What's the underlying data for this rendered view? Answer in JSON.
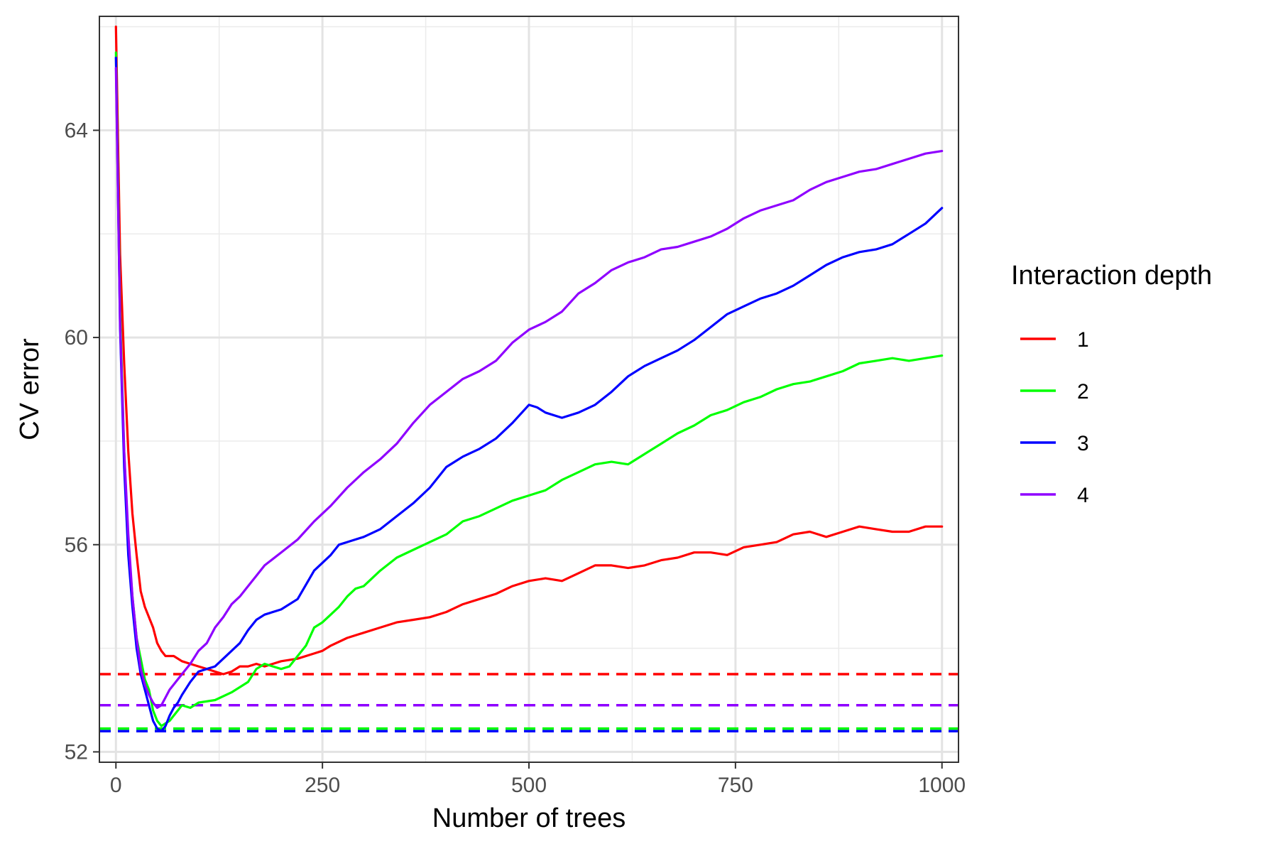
{
  "chart_data": {
    "type": "line",
    "title": "",
    "xlabel": "Number of trees",
    "ylabel": "CV error",
    "xlim": [
      -20,
      1020
    ],
    "ylim": [
      51.8,
      66.2
    ],
    "x_ticks": [
      0,
      250,
      500,
      750,
      1000
    ],
    "x_tick_labels": [
      "0",
      "250",
      "500",
      "750",
      "1000"
    ],
    "y_ticks": [
      52,
      56,
      60,
      64
    ],
    "y_tick_labels": [
      "52",
      "56",
      "60",
      "64"
    ],
    "grid": true,
    "legend": {
      "title": "Interaction depth",
      "position": "right",
      "entries": [
        "1",
        "2",
        "3",
        "4"
      ]
    },
    "series": [
      {
        "name": "1",
        "color": "#ff0000",
        "min_line": 53.5,
        "points": [
          [
            0,
            66
          ],
          [
            5,
            61.6
          ],
          [
            10,
            59.5
          ],
          [
            15,
            57.8
          ],
          [
            20,
            56.6
          ],
          [
            25,
            55.8
          ],
          [
            30,
            55.1
          ],
          [
            35,
            54.8
          ],
          [
            40,
            54.6
          ],
          [
            45,
            54.4
          ],
          [
            50,
            54.1
          ],
          [
            55,
            53.95
          ],
          [
            60,
            53.85
          ],
          [
            70,
            53.85
          ],
          [
            80,
            53.75
          ],
          [
            90,
            53.7
          ],
          [
            100,
            53.65
          ],
          [
            110,
            53.6
          ],
          [
            120,
            53.55
          ],
          [
            130,
            53.5
          ],
          [
            140,
            53.55
          ],
          [
            150,
            53.65
          ],
          [
            160,
            53.65
          ],
          [
            170,
            53.7
          ],
          [
            180,
            53.65
          ],
          [
            200,
            53.75
          ],
          [
            220,
            53.8
          ],
          [
            240,
            53.9
          ],
          [
            250,
            53.95
          ],
          [
            260,
            54.05
          ],
          [
            280,
            54.2
          ],
          [
            300,
            54.3
          ],
          [
            320,
            54.4
          ],
          [
            340,
            54.5
          ],
          [
            360,
            54.55
          ],
          [
            380,
            54.6
          ],
          [
            400,
            54.7
          ],
          [
            420,
            54.85
          ],
          [
            440,
            54.95
          ],
          [
            460,
            55.05
          ],
          [
            480,
            55.2
          ],
          [
            500,
            55.3
          ],
          [
            520,
            55.35
          ],
          [
            540,
            55.3
          ],
          [
            560,
            55.45
          ],
          [
            580,
            55.6
          ],
          [
            600,
            55.6
          ],
          [
            620,
            55.55
          ],
          [
            640,
            55.6
          ],
          [
            660,
            55.7
          ],
          [
            680,
            55.75
          ],
          [
            700,
            55.85
          ],
          [
            720,
            55.85
          ],
          [
            740,
            55.8
          ],
          [
            760,
            55.95
          ],
          [
            780,
            56
          ],
          [
            800,
            56.05
          ],
          [
            820,
            56.2
          ],
          [
            840,
            56.25
          ],
          [
            860,
            56.15
          ],
          [
            880,
            56.25
          ],
          [
            900,
            56.35
          ],
          [
            920,
            56.3
          ],
          [
            940,
            56.25
          ],
          [
            960,
            56.25
          ],
          [
            980,
            56.35
          ],
          [
            1000,
            56.35
          ]
        ]
      },
      {
        "name": "2",
        "color": "#00ff00",
        "min_line": 52.45,
        "points": [
          [
            0,
            65.5
          ],
          [
            5,
            60.5
          ],
          [
            10,
            57.8
          ],
          [
            15,
            56
          ],
          [
            20,
            55
          ],
          [
            25,
            54.2
          ],
          [
            30,
            53.8
          ],
          [
            35,
            53.4
          ],
          [
            40,
            53.2
          ],
          [
            45,
            52.8
          ],
          [
            50,
            52.6
          ],
          [
            55,
            52.5
          ],
          [
            60,
            52.55
          ],
          [
            65,
            52.6
          ],
          [
            70,
            52.7
          ],
          [
            75,
            52.8
          ],
          [
            80,
            52.9
          ],
          [
            90,
            52.85
          ],
          [
            100,
            52.95
          ],
          [
            120,
            53
          ],
          [
            140,
            53.15
          ],
          [
            160,
            53.35
          ],
          [
            170,
            53.6
          ],
          [
            180,
            53.7
          ],
          [
            190,
            53.65
          ],
          [
            200,
            53.6
          ],
          [
            210,
            53.65
          ],
          [
            220,
            53.85
          ],
          [
            230,
            54.05
          ],
          [
            240,
            54.4
          ],
          [
            250,
            54.5
          ],
          [
            260,
            54.65
          ],
          [
            270,
            54.8
          ],
          [
            280,
            55
          ],
          [
            290,
            55.15
          ],
          [
            300,
            55.2
          ],
          [
            320,
            55.5
          ],
          [
            340,
            55.75
          ],
          [
            360,
            55.9
          ],
          [
            380,
            56.05
          ],
          [
            400,
            56.2
          ],
          [
            420,
            56.45
          ],
          [
            440,
            56.55
          ],
          [
            460,
            56.7
          ],
          [
            480,
            56.85
          ],
          [
            500,
            56.95
          ],
          [
            520,
            57.05
          ],
          [
            540,
            57.25
          ],
          [
            560,
            57.4
          ],
          [
            580,
            57.55
          ],
          [
            600,
            57.6
          ],
          [
            620,
            57.55
          ],
          [
            640,
            57.75
          ],
          [
            660,
            57.95
          ],
          [
            680,
            58.15
          ],
          [
            700,
            58.3
          ],
          [
            720,
            58.5
          ],
          [
            740,
            58.6
          ],
          [
            760,
            58.75
          ],
          [
            780,
            58.85
          ],
          [
            800,
            59
          ],
          [
            820,
            59.1
          ],
          [
            840,
            59.15
          ],
          [
            860,
            59.25
          ],
          [
            880,
            59.35
          ],
          [
            900,
            59.5
          ],
          [
            920,
            59.55
          ],
          [
            940,
            59.6
          ],
          [
            960,
            59.55
          ],
          [
            980,
            59.6
          ],
          [
            1000,
            59.65
          ]
        ]
      },
      {
        "name": "3",
        "color": "#0000ff",
        "min_line": 52.4,
        "points": [
          [
            0,
            65.4
          ],
          [
            5,
            60.2
          ],
          [
            10,
            57.5
          ],
          [
            15,
            55.8
          ],
          [
            20,
            54.8
          ],
          [
            25,
            54
          ],
          [
            30,
            53.5
          ],
          [
            35,
            53.2
          ],
          [
            40,
            52.9
          ],
          [
            45,
            52.6
          ],
          [
            50,
            52.45
          ],
          [
            55,
            52.4
          ],
          [
            60,
            52.5
          ],
          [
            65,
            52.7
          ],
          [
            70,
            52.85
          ],
          [
            75,
            52.95
          ],
          [
            80,
            53.1
          ],
          [
            90,
            53.35
          ],
          [
            100,
            53.55
          ],
          [
            110,
            53.6
          ],
          [
            120,
            53.65
          ],
          [
            130,
            53.8
          ],
          [
            140,
            53.95
          ],
          [
            150,
            54.1
          ],
          [
            160,
            54.35
          ],
          [
            170,
            54.55
          ],
          [
            180,
            54.65
          ],
          [
            200,
            54.75
          ],
          [
            220,
            54.95
          ],
          [
            240,
            55.5
          ],
          [
            250,
            55.65
          ],
          [
            260,
            55.8
          ],
          [
            270,
            56
          ],
          [
            280,
            56.05
          ],
          [
            300,
            56.15
          ],
          [
            320,
            56.3
          ],
          [
            340,
            56.55
          ],
          [
            360,
            56.8
          ],
          [
            380,
            57.1
          ],
          [
            400,
            57.5
          ],
          [
            420,
            57.7
          ],
          [
            440,
            57.85
          ],
          [
            460,
            58.05
          ],
          [
            480,
            58.35
          ],
          [
            500,
            58.7
          ],
          [
            510,
            58.65
          ],
          [
            520,
            58.55
          ],
          [
            540,
            58.45
          ],
          [
            560,
            58.55
          ],
          [
            580,
            58.7
          ],
          [
            600,
            58.95
          ],
          [
            620,
            59.25
          ],
          [
            640,
            59.45
          ],
          [
            660,
            59.6
          ],
          [
            680,
            59.75
          ],
          [
            700,
            59.95
          ],
          [
            720,
            60.2
          ],
          [
            740,
            60.45
          ],
          [
            760,
            60.6
          ],
          [
            780,
            60.75
          ],
          [
            800,
            60.85
          ],
          [
            820,
            61
          ],
          [
            840,
            61.2
          ],
          [
            860,
            61.4
          ],
          [
            880,
            61.55
          ],
          [
            900,
            61.65
          ],
          [
            920,
            61.7
          ],
          [
            940,
            61.8
          ],
          [
            960,
            62
          ],
          [
            980,
            62.2
          ],
          [
            1000,
            62.5
          ]
        ]
      },
      {
        "name": "4",
        "color": "#8f00ff",
        "min_line": 52.9,
        "points": [
          [
            0,
            65.2
          ],
          [
            5,
            60.3
          ],
          [
            10,
            57.8
          ],
          [
            15,
            56.2
          ],
          [
            20,
            55
          ],
          [
            25,
            54.2
          ],
          [
            30,
            53.6
          ],
          [
            35,
            53.3
          ],
          [
            40,
            53.1
          ],
          [
            45,
            52.95
          ],
          [
            50,
            52.85
          ],
          [
            55,
            52.9
          ],
          [
            60,
            53.05
          ],
          [
            65,
            53.2
          ],
          [
            70,
            53.3
          ],
          [
            75,
            53.4
          ],
          [
            80,
            53.5
          ],
          [
            90,
            53.7
          ],
          [
            100,
            53.95
          ],
          [
            110,
            54.1
          ],
          [
            120,
            54.4
          ],
          [
            130,
            54.6
          ],
          [
            140,
            54.85
          ],
          [
            150,
            55
          ],
          [
            160,
            55.2
          ],
          [
            170,
            55.4
          ],
          [
            180,
            55.6
          ],
          [
            200,
            55.85
          ],
          [
            220,
            56.1
          ],
          [
            240,
            56.45
          ],
          [
            260,
            56.75
          ],
          [
            280,
            57.1
          ],
          [
            300,
            57.4
          ],
          [
            320,
            57.65
          ],
          [
            340,
            57.95
          ],
          [
            360,
            58.35
          ],
          [
            380,
            58.7
          ],
          [
            400,
            58.95
          ],
          [
            420,
            59.2
          ],
          [
            440,
            59.35
          ],
          [
            460,
            59.55
          ],
          [
            480,
            59.9
          ],
          [
            500,
            60.15
          ],
          [
            520,
            60.3
          ],
          [
            540,
            60.5
          ],
          [
            560,
            60.85
          ],
          [
            580,
            61.05
          ],
          [
            600,
            61.3
          ],
          [
            620,
            61.45
          ],
          [
            640,
            61.55
          ],
          [
            660,
            61.7
          ],
          [
            680,
            61.75
          ],
          [
            700,
            61.85
          ],
          [
            720,
            61.95
          ],
          [
            740,
            62.1
          ],
          [
            760,
            62.3
          ],
          [
            780,
            62.45
          ],
          [
            800,
            62.55
          ],
          [
            820,
            62.65
          ],
          [
            840,
            62.85
          ],
          [
            860,
            63
          ],
          [
            880,
            63.1
          ],
          [
            900,
            63.2
          ],
          [
            920,
            63.25
          ],
          [
            940,
            63.35
          ],
          [
            960,
            63.45
          ],
          [
            980,
            63.55
          ],
          [
            1000,
            63.6
          ]
        ]
      }
    ]
  }
}
